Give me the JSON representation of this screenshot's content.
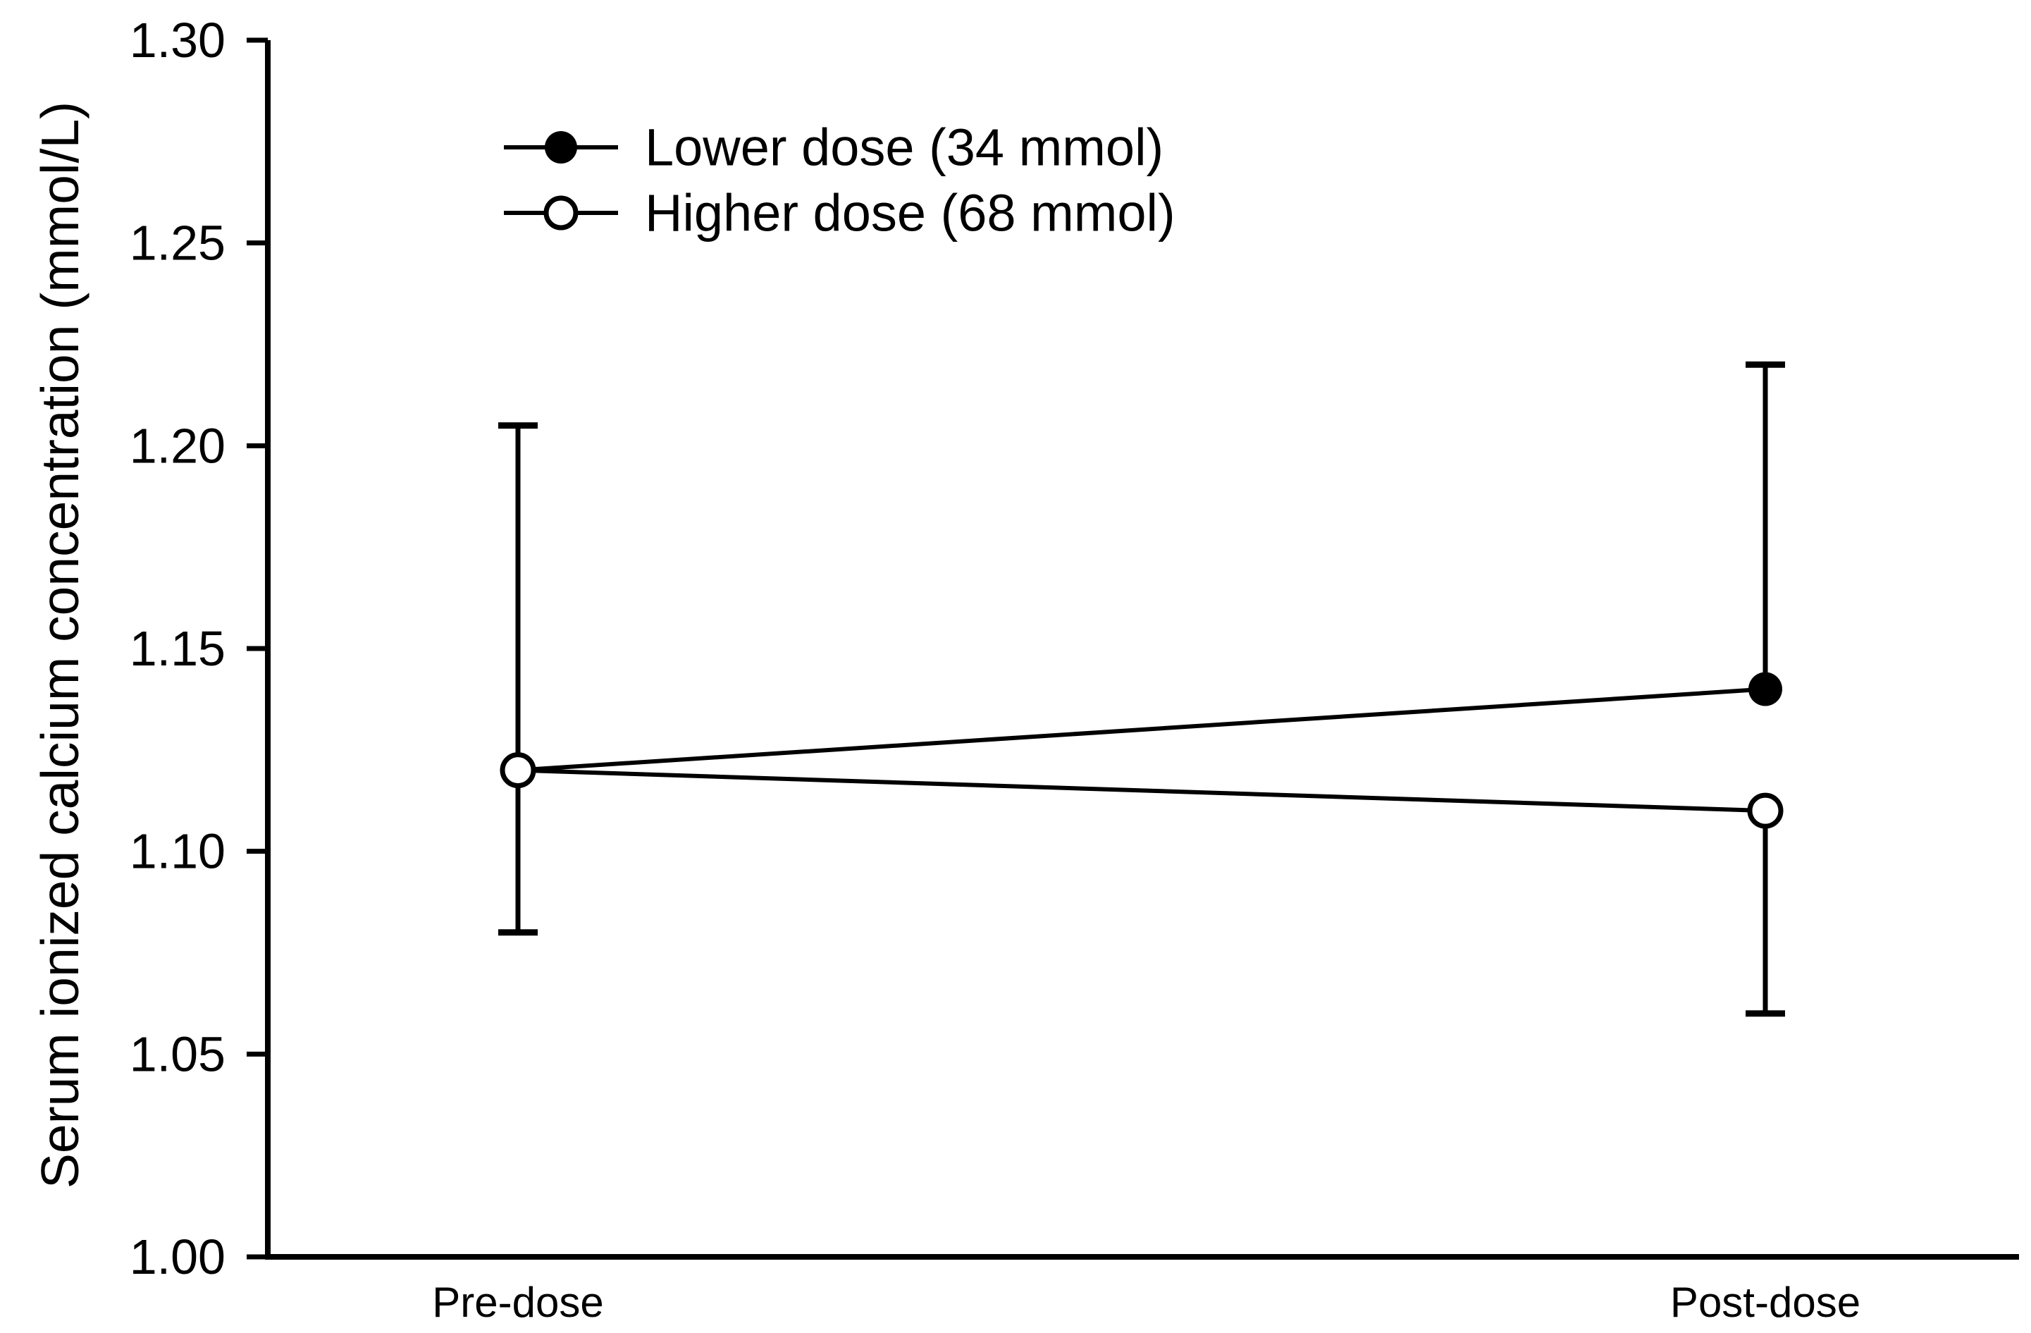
{
  "chart_data": {
    "type": "line",
    "title": "",
    "xlabel": "",
    "ylabel": "Serum ionized calcium concentration (mmol/L)",
    "categories": [
      "Pre-dose",
      "Post-dose"
    ],
    "ylim": [
      1.0,
      1.3
    ],
    "yticks": [
      1.3,
      1.25,
      1.2,
      1.15,
      1.1,
      1.05,
      1.0
    ],
    "ytick_labels": [
      "1.30",
      "1.25",
      "1.20",
      "1.15",
      "1.10",
      "1.05",
      "1.00"
    ],
    "grid": false,
    "legend_position": "upper-left-inside",
    "series": [
      {
        "name": "Lower dose (34 mmol)",
        "marker": "filled-circle",
        "values": [
          1.12,
          1.14
        ],
        "error_caps": [
          1.205,
          1.22
        ],
        "error_direction": "up"
      },
      {
        "name": "Higher dose (68 mmol)",
        "marker": "open-circle",
        "values": [
          1.12,
          1.11
        ],
        "error_caps": [
          1.08,
          1.06
        ],
        "error_direction": "down"
      }
    ],
    "colors": {
      "foreground": "#000000",
      "background": "#ffffff"
    }
  }
}
